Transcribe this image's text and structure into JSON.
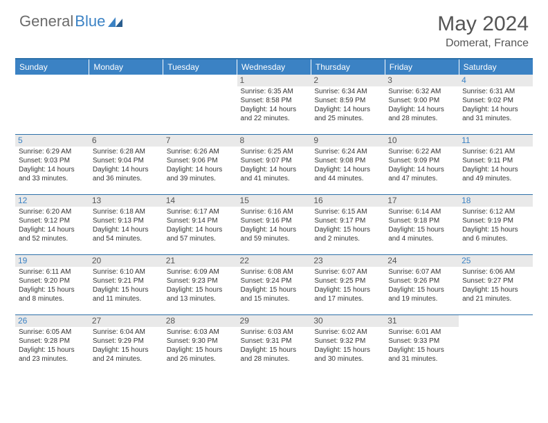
{
  "brand": {
    "part1": "General",
    "part2": "Blue"
  },
  "title": "May 2024",
  "location": "Domerat, France",
  "colors": {
    "accent": "#3b82c4",
    "header_divider": "#2b6fa8",
    "day_header_bg": "#e9e9e9",
    "text": "#333333",
    "muted": "#555555"
  },
  "weekdays": [
    "Sunday",
    "Monday",
    "Tuesday",
    "Wednesday",
    "Thursday",
    "Friday",
    "Saturday"
  ],
  "weeks": [
    [
      null,
      null,
      null,
      {
        "n": "1",
        "sr": "Sunrise: 6:35 AM",
        "ss": "Sunset: 8:58 PM",
        "d1": "Daylight: 14 hours",
        "d2": "and 22 minutes."
      },
      {
        "n": "2",
        "sr": "Sunrise: 6:34 AM",
        "ss": "Sunset: 8:59 PM",
        "d1": "Daylight: 14 hours",
        "d2": "and 25 minutes."
      },
      {
        "n": "3",
        "sr": "Sunrise: 6:32 AM",
        "ss": "Sunset: 9:00 PM",
        "d1": "Daylight: 14 hours",
        "d2": "and 28 minutes."
      },
      {
        "n": "4",
        "sr": "Sunrise: 6:31 AM",
        "ss": "Sunset: 9:02 PM",
        "d1": "Daylight: 14 hours",
        "d2": "and 31 minutes."
      }
    ],
    [
      {
        "n": "5",
        "sr": "Sunrise: 6:29 AM",
        "ss": "Sunset: 9:03 PM",
        "d1": "Daylight: 14 hours",
        "d2": "and 33 minutes."
      },
      {
        "n": "6",
        "sr": "Sunrise: 6:28 AM",
        "ss": "Sunset: 9:04 PM",
        "d1": "Daylight: 14 hours",
        "d2": "and 36 minutes."
      },
      {
        "n": "7",
        "sr": "Sunrise: 6:26 AM",
        "ss": "Sunset: 9:06 PM",
        "d1": "Daylight: 14 hours",
        "d2": "and 39 minutes."
      },
      {
        "n": "8",
        "sr": "Sunrise: 6:25 AM",
        "ss": "Sunset: 9:07 PM",
        "d1": "Daylight: 14 hours",
        "d2": "and 41 minutes."
      },
      {
        "n": "9",
        "sr": "Sunrise: 6:24 AM",
        "ss": "Sunset: 9:08 PM",
        "d1": "Daylight: 14 hours",
        "d2": "and 44 minutes."
      },
      {
        "n": "10",
        "sr": "Sunrise: 6:22 AM",
        "ss": "Sunset: 9:09 PM",
        "d1": "Daylight: 14 hours",
        "d2": "and 47 minutes."
      },
      {
        "n": "11",
        "sr": "Sunrise: 6:21 AM",
        "ss": "Sunset: 9:11 PM",
        "d1": "Daylight: 14 hours",
        "d2": "and 49 minutes."
      }
    ],
    [
      {
        "n": "12",
        "sr": "Sunrise: 6:20 AM",
        "ss": "Sunset: 9:12 PM",
        "d1": "Daylight: 14 hours",
        "d2": "and 52 minutes."
      },
      {
        "n": "13",
        "sr": "Sunrise: 6:18 AM",
        "ss": "Sunset: 9:13 PM",
        "d1": "Daylight: 14 hours",
        "d2": "and 54 minutes."
      },
      {
        "n": "14",
        "sr": "Sunrise: 6:17 AM",
        "ss": "Sunset: 9:14 PM",
        "d1": "Daylight: 14 hours",
        "d2": "and 57 minutes."
      },
      {
        "n": "15",
        "sr": "Sunrise: 6:16 AM",
        "ss": "Sunset: 9:16 PM",
        "d1": "Daylight: 14 hours",
        "d2": "and 59 minutes."
      },
      {
        "n": "16",
        "sr": "Sunrise: 6:15 AM",
        "ss": "Sunset: 9:17 PM",
        "d1": "Daylight: 15 hours",
        "d2": "and 2 minutes."
      },
      {
        "n": "17",
        "sr": "Sunrise: 6:14 AM",
        "ss": "Sunset: 9:18 PM",
        "d1": "Daylight: 15 hours",
        "d2": "and 4 minutes."
      },
      {
        "n": "18",
        "sr": "Sunrise: 6:12 AM",
        "ss": "Sunset: 9:19 PM",
        "d1": "Daylight: 15 hours",
        "d2": "and 6 minutes."
      }
    ],
    [
      {
        "n": "19",
        "sr": "Sunrise: 6:11 AM",
        "ss": "Sunset: 9:20 PM",
        "d1": "Daylight: 15 hours",
        "d2": "and 8 minutes."
      },
      {
        "n": "20",
        "sr": "Sunrise: 6:10 AM",
        "ss": "Sunset: 9:21 PM",
        "d1": "Daylight: 15 hours",
        "d2": "and 11 minutes."
      },
      {
        "n": "21",
        "sr": "Sunrise: 6:09 AM",
        "ss": "Sunset: 9:23 PM",
        "d1": "Daylight: 15 hours",
        "d2": "and 13 minutes."
      },
      {
        "n": "22",
        "sr": "Sunrise: 6:08 AM",
        "ss": "Sunset: 9:24 PM",
        "d1": "Daylight: 15 hours",
        "d2": "and 15 minutes."
      },
      {
        "n": "23",
        "sr": "Sunrise: 6:07 AM",
        "ss": "Sunset: 9:25 PM",
        "d1": "Daylight: 15 hours",
        "d2": "and 17 minutes."
      },
      {
        "n": "24",
        "sr": "Sunrise: 6:07 AM",
        "ss": "Sunset: 9:26 PM",
        "d1": "Daylight: 15 hours",
        "d2": "and 19 minutes."
      },
      {
        "n": "25",
        "sr": "Sunrise: 6:06 AM",
        "ss": "Sunset: 9:27 PM",
        "d1": "Daylight: 15 hours",
        "d2": "and 21 minutes."
      }
    ],
    [
      {
        "n": "26",
        "sr": "Sunrise: 6:05 AM",
        "ss": "Sunset: 9:28 PM",
        "d1": "Daylight: 15 hours",
        "d2": "and 23 minutes."
      },
      {
        "n": "27",
        "sr": "Sunrise: 6:04 AM",
        "ss": "Sunset: 9:29 PM",
        "d1": "Daylight: 15 hours",
        "d2": "and 24 minutes."
      },
      {
        "n": "28",
        "sr": "Sunrise: 6:03 AM",
        "ss": "Sunset: 9:30 PM",
        "d1": "Daylight: 15 hours",
        "d2": "and 26 minutes."
      },
      {
        "n": "29",
        "sr": "Sunrise: 6:03 AM",
        "ss": "Sunset: 9:31 PM",
        "d1": "Daylight: 15 hours",
        "d2": "and 28 minutes."
      },
      {
        "n": "30",
        "sr": "Sunrise: 6:02 AM",
        "ss": "Sunset: 9:32 PM",
        "d1": "Daylight: 15 hours",
        "d2": "and 30 minutes."
      },
      {
        "n": "31",
        "sr": "Sunrise: 6:01 AM",
        "ss": "Sunset: 9:33 PM",
        "d1": "Daylight: 15 hours",
        "d2": "and 31 minutes."
      },
      null
    ]
  ]
}
